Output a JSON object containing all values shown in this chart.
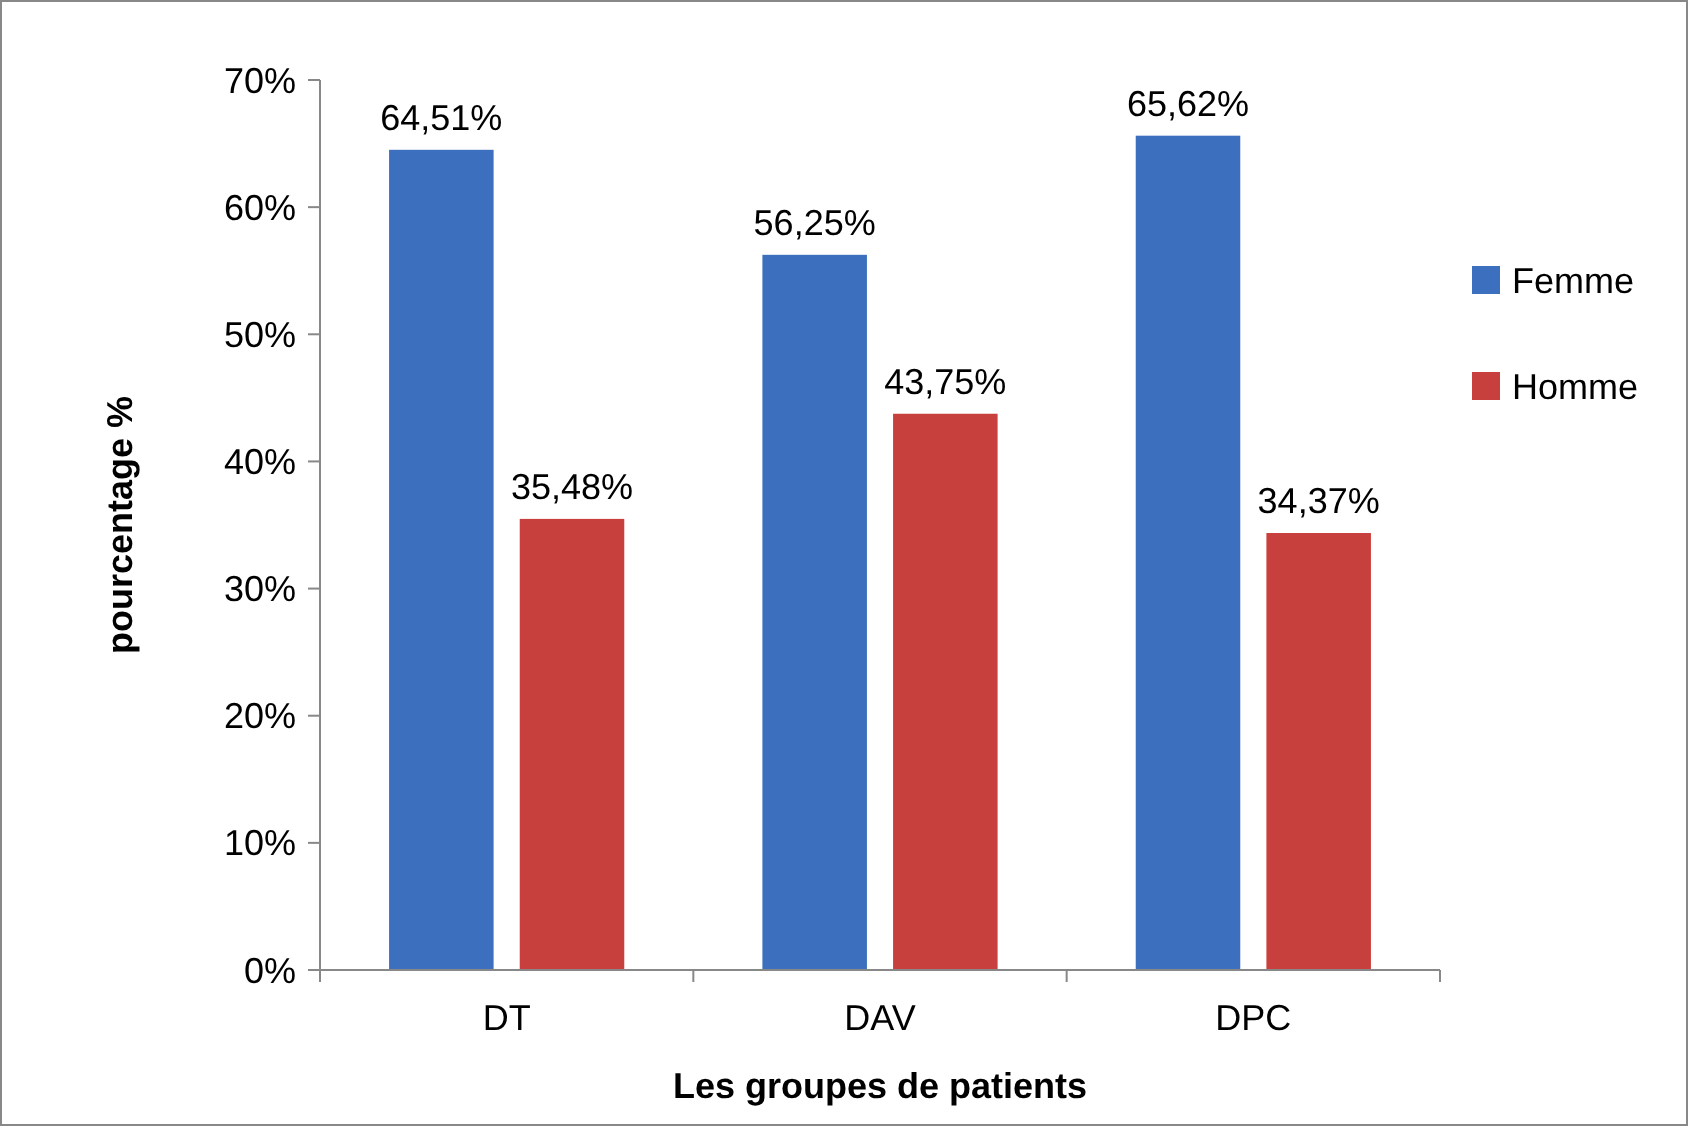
{
  "chart_data": {
    "type": "bar",
    "xlabel": "Les groupes de patients",
    "ylabel": "pourcentage %",
    "categories": [
      "DT",
      "DAV",
      "DPC"
    ],
    "series": [
      {
        "name": "Femme",
        "color": "#3d6fbf",
        "values": [
          64.51,
          56.25,
          65.62
        ],
        "value_labels": [
          "64,51%",
          "56,25%",
          "65,62%"
        ]
      },
      {
        "name": "Homme",
        "color": "#c8403d",
        "values": [
          35.48,
          43.75,
          34.37
        ],
        "value_labels": [
          "35,48%",
          "43,75%",
          "34,37%"
        ]
      }
    ],
    "ylim": [
      0,
      70
    ],
    "yticks": [
      {
        "value": 0,
        "label": "0%"
      },
      {
        "value": 10,
        "label": "10%"
      },
      {
        "value": 20,
        "label": "20%"
      },
      {
        "value": 30,
        "label": "30%"
      },
      {
        "value": 40,
        "label": "40%"
      },
      {
        "value": 50,
        "label": "50%"
      },
      {
        "value": 60,
        "label": "60%"
      },
      {
        "value": 70,
        "label": "70%"
      }
    ],
    "grid": false,
    "legend": "right"
  }
}
